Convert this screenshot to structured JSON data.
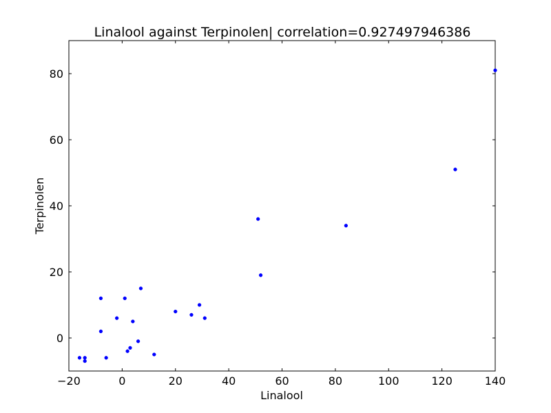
{
  "chart_data": {
    "type": "scatter",
    "title": "Linalool against Terpinolen| correlation=0.927497946386",
    "xlabel": "Linalool",
    "ylabel": "Terpinolen",
    "xlim": [
      -20,
      140
    ],
    "ylim": [
      -10,
      90
    ],
    "x_ticks": [
      -20,
      0,
      20,
      40,
      60,
      80,
      100,
      120,
      140
    ],
    "x_tick_labels": [
      "−20",
      "0",
      "20",
      "40",
      "60",
      "80",
      "100",
      "120",
      "140"
    ],
    "y_ticks": [
      0,
      20,
      40,
      60,
      80
    ],
    "y_tick_labels": [
      "0",
      "20",
      "40",
      "60",
      "80"
    ],
    "grid": false,
    "legend": "none",
    "marker_color": "#0000ff",
    "series": [
      {
        "points": [
          {
            "x": -16,
            "y": -6
          },
          {
            "x": -14,
            "y": -6
          },
          {
            "x": -14,
            "y": -7
          },
          {
            "x": -8,
            "y": 12
          },
          {
            "x": -8,
            "y": 2
          },
          {
            "x": -6,
            "y": -6
          },
          {
            "x": -2,
            "y": 6
          },
          {
            "x": 1,
            "y": 12
          },
          {
            "x": 2,
            "y": -4
          },
          {
            "x": 3,
            "y": -3
          },
          {
            "x": 4,
            "y": 5
          },
          {
            "x": 6,
            "y": -1
          },
          {
            "x": 7,
            "y": 15
          },
          {
            "x": 12,
            "y": -5
          },
          {
            "x": 20,
            "y": 8
          },
          {
            "x": 26,
            "y": 7
          },
          {
            "x": 29,
            "y": 10
          },
          {
            "x": 31,
            "y": 6
          },
          {
            "x": 51,
            "y": 36
          },
          {
            "x": 52,
            "y": 19
          },
          {
            "x": 84,
            "y": 34
          },
          {
            "x": 125,
            "y": 51
          },
          {
            "x": 140,
            "y": 81
          }
        ]
      }
    ]
  }
}
